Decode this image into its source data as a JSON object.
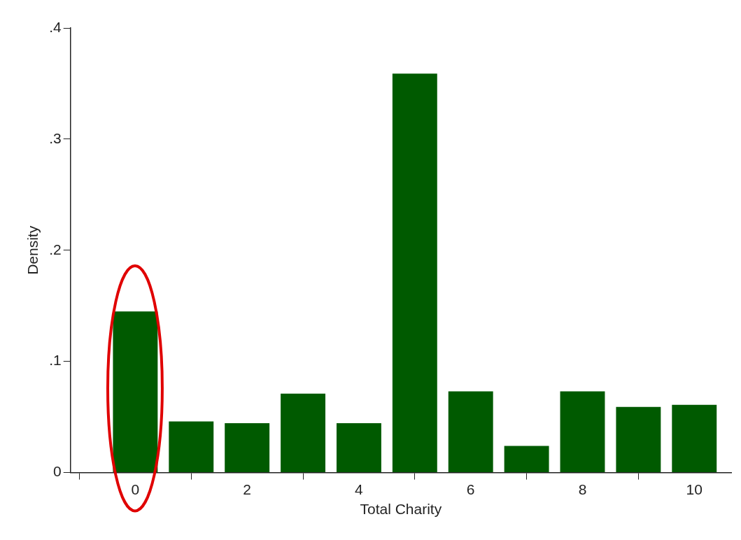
{
  "chart_data": {
    "type": "bar",
    "xlabel": "Total Charity",
    "ylabel": "Density",
    "x": [
      0,
      1,
      2,
      3,
      4,
      5,
      6,
      7,
      8,
      9,
      10
    ],
    "values": [
      0.145,
      0.046,
      0.0445,
      0.071,
      0.0445,
      0.359,
      0.073,
      0.024,
      0.073,
      0.059,
      0.061
    ],
    "color": "#005a00",
    "xlim": [
      -1.16,
      10.66
    ],
    "xticks": [
      0,
      2,
      4,
      6,
      8,
      10
    ],
    "ylim": [
      0,
      0.4
    ],
    "yticks": [
      0,
      {
        "value": 0.1,
        "label": ".1"
      },
      {
        "value": 0.2,
        "label": ".2"
      },
      {
        "value": 0.3,
        "label": ".3"
      },
      {
        "value": 0.4,
        "label": ".4"
      }
    ]
  }
}
